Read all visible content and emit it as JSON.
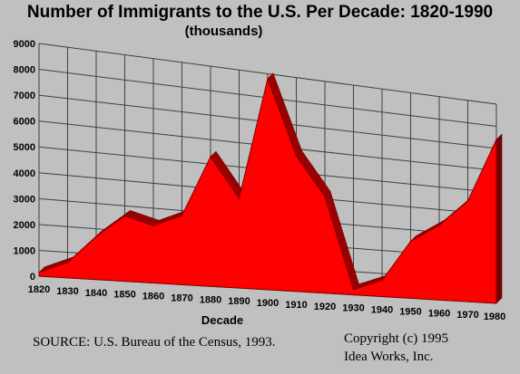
{
  "chart_data": {
    "type": "area",
    "title": "Number of Immigrants to the U.S. Per Decade: 1820-1990",
    "subtitle": "(thousands)",
    "xlabel": "Decade",
    "ylabel": "",
    "categories": [
      "1820",
      "1830",
      "1840",
      "1850",
      "1860",
      "1870",
      "1880",
      "1890",
      "1900",
      "1910",
      "1920",
      "1930",
      "1940",
      "1950",
      "1960",
      "1970",
      "1980"
    ],
    "values": [
      150,
      600,
      1700,
      2600,
      2300,
      2800,
      5300,
      3700,
      8800,
      5700,
      4100,
      230,
      700,
      2500,
      3300,
      4500,
      7400
    ],
    "y_ticks": [
      0,
      1000,
      2000,
      3000,
      4000,
      5000,
      6000,
      7000,
      8000,
      9000
    ],
    "ylim": [
      0,
      9000
    ],
    "grid": true,
    "three_d": true,
    "series_color": "#ff0000"
  },
  "footer": {
    "source": "SOURCE: U.S. Bureau of the Census, 1993.",
    "copyright_line1": "Copyright (c) 1995",
    "copyright_line2": "Idea Works, Inc."
  }
}
